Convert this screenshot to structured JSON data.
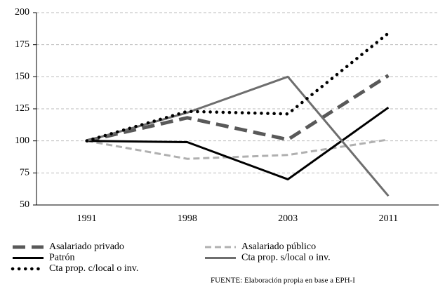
{
  "chart_data": {
    "type": "line",
    "categories": [
      "1991",
      "1998",
      "2003",
      "2011"
    ],
    "series": [
      {
        "name": "Asalariado privado",
        "color": "#595959",
        "style": "dashed",
        "values": [
          100,
          118,
          101,
          151
        ]
      },
      {
        "name": "Asalariado público",
        "color": "#b0b0b0",
        "style": "dashed-thin",
        "values": [
          100,
          86,
          89,
          101
        ]
      },
      {
        "name": "Patrón",
        "color": "#000000",
        "style": "solid",
        "values": [
          100,
          99,
          70,
          126
        ]
      },
      {
        "name": "Cta prop. s/local o inv.",
        "color": "#6e6e6e",
        "style": "solid",
        "values": [
          100,
          122,
          150,
          57
        ]
      },
      {
        "name": "Cta prop. c/local  o inv.",
        "color": "#000000",
        "style": "dotted",
        "values": [
          100,
          123,
          121,
          184
        ]
      }
    ],
    "ylim": [
      50,
      200
    ],
    "yticks": [
      50,
      75,
      100,
      125,
      150,
      175,
      200
    ],
    "grid": true,
    "note": "FUENTE: Elaboración propia en base a EPH-I"
  }
}
